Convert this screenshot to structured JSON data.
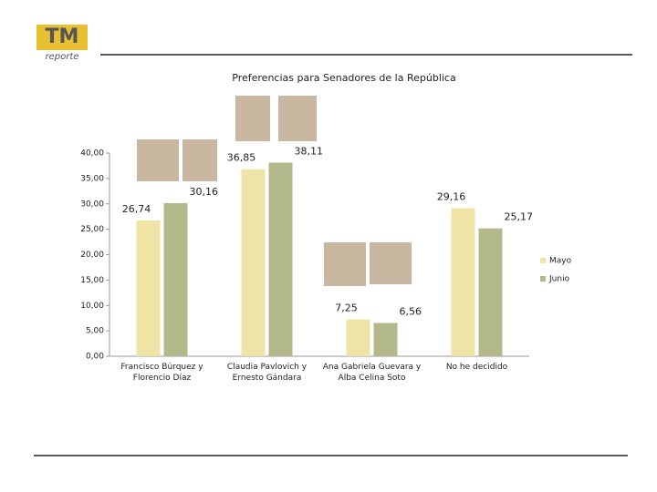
{
  "logo": {
    "mark": "TM",
    "sub": "reporte"
  },
  "chart_data": {
    "type": "bar",
    "title": "Preferencias para Senadores de la República",
    "categories": [
      "Francisco Búrquez y Florencio Díaz",
      "Claudia Pavlovich y Ernesto Gándara",
      "Ana Gabriela Guevara y Alba Celina Soto",
      "No he decidido"
    ],
    "series": [
      {
        "name": "Mayo",
        "color": "#efe3a6",
        "values": [
          26.74,
          36.85,
          7.25,
          29.16
        ],
        "value_labels": [
          "26,74",
          "36,85",
          "7,25",
          "29,16"
        ]
      },
      {
        "name": "Junio",
        "color": "#b3b98a",
        "values": [
          30.16,
          38.11,
          6.56,
          25.17
        ],
        "value_labels": [
          "30,16",
          "38,11",
          "6,56",
          "25,17"
        ]
      }
    ],
    "ylim": [
      0,
      40
    ],
    "yticks": [
      {
        "value": 0,
        "label": "0,00"
      },
      {
        "value": 5,
        "label": "5,00"
      },
      {
        "value": 10,
        "label": "10,00"
      },
      {
        "value": 15,
        "label": "15,00"
      },
      {
        "value": 20,
        "label": "20,00"
      },
      {
        "value": 25,
        "label": "25,00"
      },
      {
        "value": 30,
        "label": "30,00"
      },
      {
        "value": 35,
        "label": "35,00"
      },
      {
        "value": 40,
        "label": "40,00"
      }
    ],
    "legend": "right"
  }
}
